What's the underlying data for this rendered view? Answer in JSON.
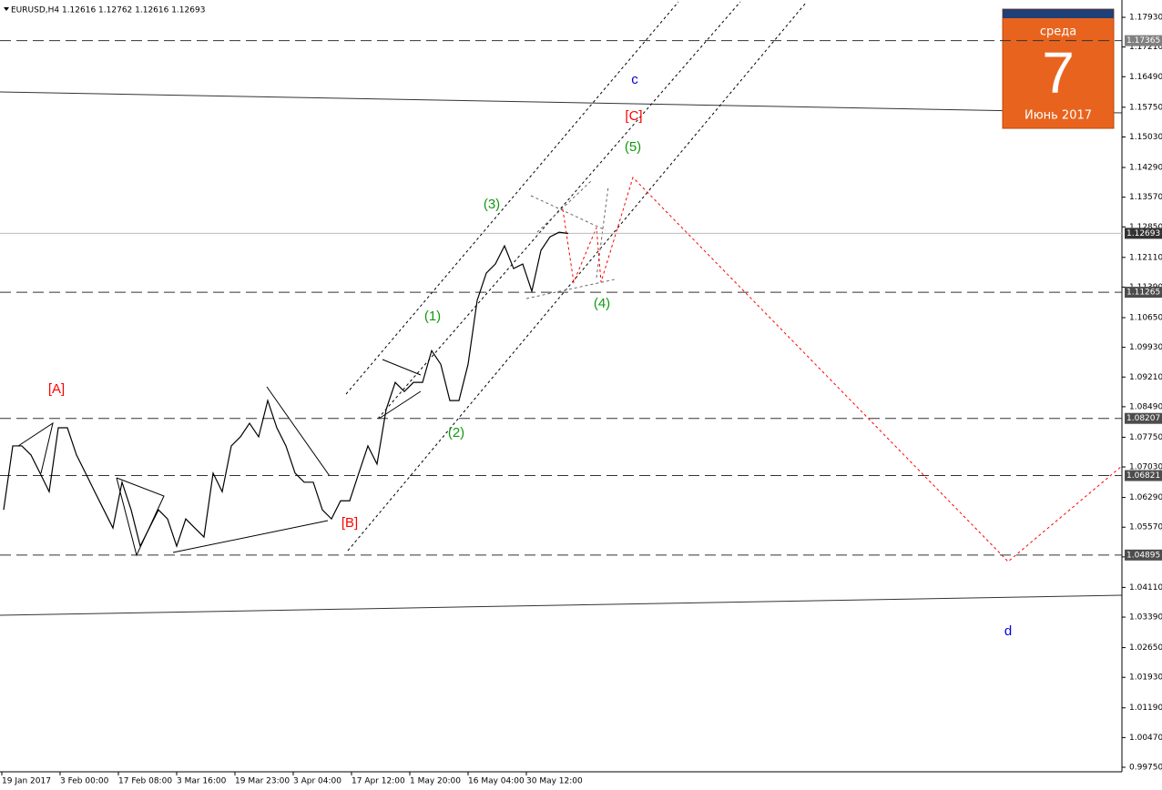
{
  "chart_data": {
    "type": "line",
    "title": "EURUSD,H4  1.12616 1.12762 1.12616 1.12693",
    "series": [
      {
        "name": "EURUSD",
        "color": "#000000",
        "values": [
          1.0599,
          1.0754,
          1.0754,
          1.0732,
          1.0688,
          1.0643,
          1.0798,
          1.0798,
          1.0732,
          1.0688,
          1.0643,
          1.0599,
          1.0555,
          1.0666,
          1.0599,
          1.0511,
          1.0555,
          1.0599,
          1.0577,
          1.0511,
          1.0577,
          1.0555,
          1.0533,
          1.0688,
          1.0643,
          1.0754,
          1.0776,
          1.0809,
          1.0776,
          1.0864,
          1.0798,
          1.0754,
          1.0688,
          1.0666,
          1.0666,
          1.0599,
          1.0577,
          1.0621,
          1.0621,
          1.0688,
          1.0754,
          1.071,
          1.0842,
          1.0908,
          1.0886,
          1.0908,
          1.0908,
          1.0985,
          1.0952,
          1.0864,
          1.0864,
          1.0952,
          1.1107,
          1.1173,
          1.1195,
          1.1239,
          1.1184,
          1.1195,
          1.1129,
          1.1228,
          1.1261,
          1.1272,
          1.1269
        ]
      }
    ],
    "xtick_labels": [
      "19 Jan 2017",
      "3 Feb 00:00",
      "17 Feb 08:00",
      "3 Mar 16:00",
      "19 Mar 23:00",
      "3 Apr 04:00",
      "17 Apr 12:00",
      "1 May 20:00",
      "16 May 04:00",
      "30 May 12:00"
    ],
    "ylim": [
      0.9964,
      1.1835
    ],
    "yticks": [
      {
        "value": 1.1793,
        "label": "1.17930"
      },
      {
        "value": 1.1721,
        "label": "1.17210"
      },
      {
        "value": 1.1649,
        "label": "1.16490"
      },
      {
        "value": 1.1575,
        "label": "1.15750"
      },
      {
        "value": 1.1503,
        "label": "1.15030"
      },
      {
        "value": 1.1429,
        "label": "1.14290"
      },
      {
        "value": 1.1357,
        "label": "1.13570"
      },
      {
        "value": 1.1285,
        "label": "1.12850"
      },
      {
        "value": 1.1211,
        "label": "1.12110"
      },
      {
        "value": 1.1139,
        "label": "1.11390"
      },
      {
        "value": 1.1065,
        "label": "1.10650"
      },
      {
        "value": 1.0993,
        "label": "1.09930"
      },
      {
        "value": 1.0921,
        "label": "1.09210"
      },
      {
        "value": 1.0849,
        "label": "1.08490"
      },
      {
        "value": 1.0775,
        "label": "1.07750"
      },
      {
        "value": 1.0703,
        "label": "1.07030"
      },
      {
        "value": 1.0629,
        "label": "1.06290"
      },
      {
        "value": 1.0557,
        "label": "1.05570"
      },
      {
        "value": 1.0485,
        "label": "1.04850"
      },
      {
        "value": 1.0411,
        "label": "1.04110"
      },
      {
        "value": 1.0339,
        "label": "1.03390"
      },
      {
        "value": 1.0265,
        "label": "1.02650"
      },
      {
        "value": 1.0193,
        "label": "1.01930"
      },
      {
        "value": 1.0119,
        "label": "1.01190"
      },
      {
        "value": 1.0047,
        "label": "1.00470"
      },
      {
        "value": 0.9975,
        "label": "0.99750"
      }
    ],
    "levels": [
      1.17365,
      1.11265,
      1.08207,
      1.06821,
      1.04895
    ],
    "price": 1.12693,
    "annotations": [
      {
        "text": "[A]",
        "color": "#ff0000"
      },
      {
        "text": "[B]",
        "color": "#ff0000"
      },
      {
        "text": "[C]",
        "color": "#ff0000"
      },
      {
        "text": "(1)",
        "color": "#119911"
      },
      {
        "text": "(2)",
        "color": "#119911"
      },
      {
        "text": "(3)",
        "color": "#119911"
      },
      {
        "text": "(4)",
        "color": "#119911"
      },
      {
        "text": "(5)",
        "color": "#119911"
      },
      {
        "text": "c",
        "color": "#0000dd"
      },
      {
        "text": "d",
        "color": "#0000dd"
      }
    ],
    "calendar": {
      "weekday": "среда",
      "day": 7,
      "month": "Июнь 2017"
    }
  }
}
